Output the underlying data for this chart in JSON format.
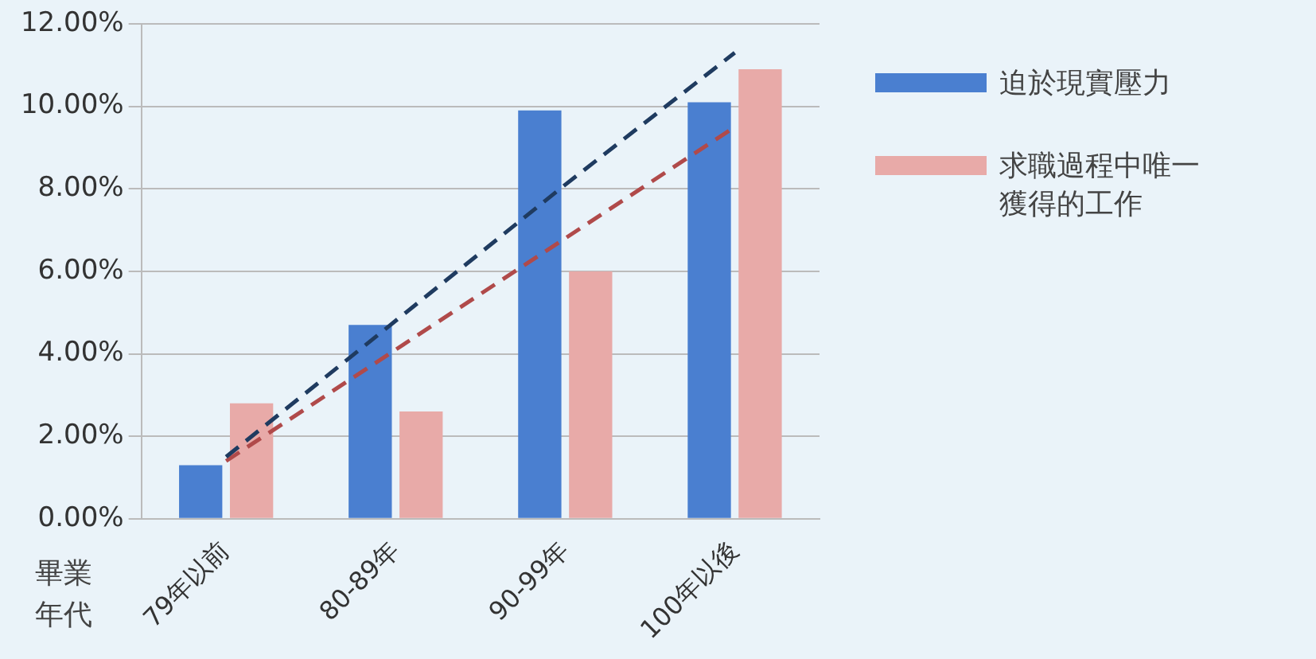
{
  "chart_data": {
    "type": "bar",
    "xlabel": "畢業年代",
    "categories": [
      "79年以前",
      "80-89年",
      "90-99年",
      "100年以後"
    ],
    "series": [
      {
        "name": "迫於現實壓力",
        "color": "#4a7fd0",
        "values": [
          1.3,
          4.7,
          9.9,
          10.1
        ]
      },
      {
        "name": "求職過程中唯一獲得的工作",
        "color": "#e8aaa8",
        "values": [
          2.8,
          2.6,
          6.0,
          10.9
        ]
      },
      {
        "type": "line",
        "color": "#1f3b60",
        "line_style": "dashed",
        "marker": "none",
        "values": [
          1.5,
          4.8,
          8.1,
          11.3
        ]
      },
      {
        "type": "line",
        "color": "#b04a4a",
        "line_style": "dashed",
        "marker": "none",
        "values": [
          1.4,
          4.1,
          6.8,
          9.5
        ]
      }
    ],
    "ylim": [
      0,
      12
    ],
    "yticks": [
      {
        "value": 0,
        "label": "0.00%"
      },
      {
        "value": 2,
        "label": "2.00%"
      },
      {
        "value": 4,
        "label": "4.00%"
      },
      {
        "value": 6,
        "label": "6.00%"
      },
      {
        "value": 8,
        "label": "8.00%"
      },
      {
        "value": 10,
        "label": "10.00%"
      },
      {
        "value": 12,
        "label": "12.00%"
      }
    ],
    "grid": "y",
    "legend": "right"
  }
}
